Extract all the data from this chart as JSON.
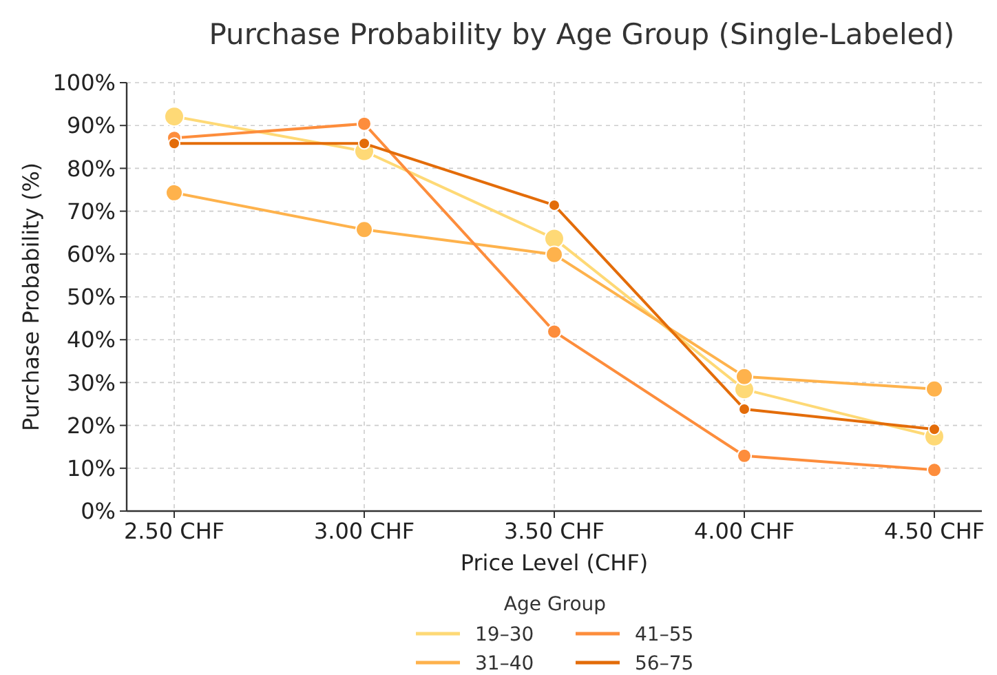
{
  "chart_data": {
    "type": "line",
    "title": "Purchase Probability by Age Group (Single-Labeled)",
    "xlabel": "Price Level (CHF)",
    "ylabel": "Purchase Probability (%)",
    "legend_title": "Age Group",
    "categories": [
      "2.50 CHF",
      "3.00 CHF",
      "3.50 CHF",
      "4.00 CHF",
      "4.50 CHF"
    ],
    "series": [
      {
        "name": "19–30",
        "color": "#fed976",
        "values": [
          92.1,
          84.0,
          63.6,
          28.4,
          17.4
        ]
      },
      {
        "name": "31–40",
        "color": "#feb24c",
        "values": [
          74.3,
          65.7,
          59.9,
          31.4,
          28.5
        ]
      },
      {
        "name": "41–55",
        "color": "#fd8d3c",
        "values": [
          87.1,
          90.4,
          41.9,
          12.9,
          9.6
        ]
      },
      {
        "name": "56–75",
        "color": "#e36c09",
        "values": [
          85.8,
          85.8,
          71.4,
          23.8,
          19.1
        ]
      }
    ],
    "ylim": [
      0,
      100
    ],
    "yticks": [
      {
        "value": 0,
        "label": "0%"
      },
      {
        "value": 10,
        "label": "10%"
      },
      {
        "value": 20,
        "label": "20%"
      },
      {
        "value": 30,
        "label": "30%"
      },
      {
        "value": 40,
        "label": "40%"
      },
      {
        "value": 50,
        "label": "50%"
      },
      {
        "value": 60,
        "label": "60%"
      },
      {
        "value": 70,
        "label": "70%"
      },
      {
        "value": 80,
        "label": "80%"
      },
      {
        "value": 90,
        "label": "90%"
      },
      {
        "value": 100,
        "label": "100%"
      }
    ],
    "grid": true,
    "legend": "bottom",
    "marker": "circle",
    "line_style": "solid"
  }
}
